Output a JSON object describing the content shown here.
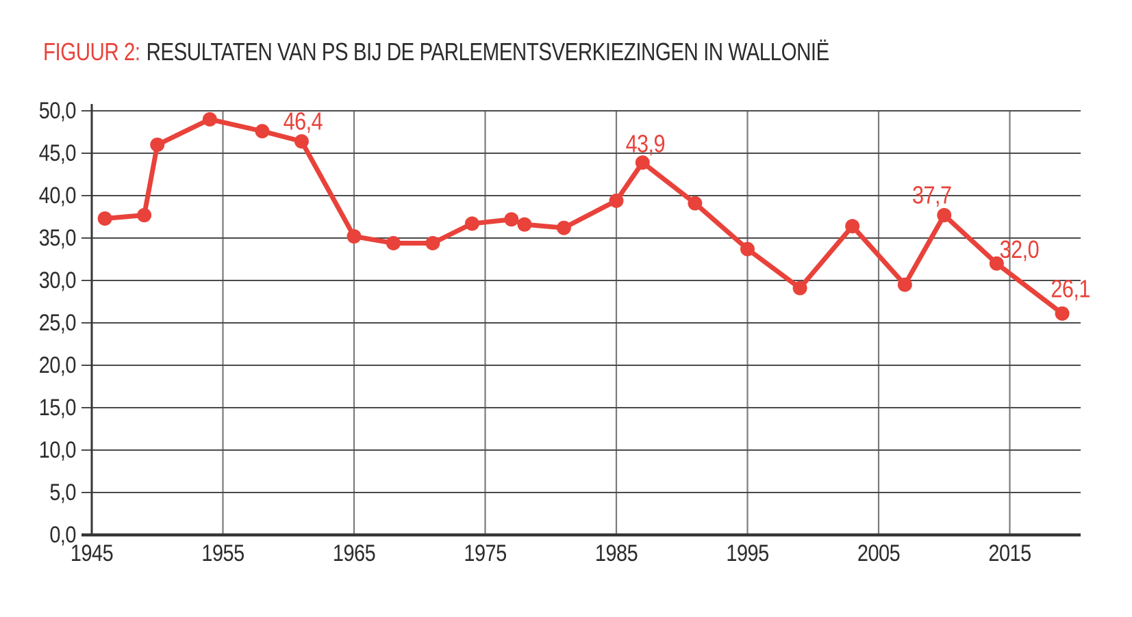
{
  "title": {
    "figure_label": "FIGUUR 2:",
    "text": "RESULTATEN VAN PS BIJ DE PARLEMENTSVERKIEZINGEN IN WALLONIË"
  },
  "colors": {
    "accent_red": "#e8423a",
    "grid_horizontal": "#4a4a4a",
    "grid_vertical": "#7b7b7b",
    "axis": "#363636",
    "text": "#2b2b2b"
  },
  "chart_data": {
    "type": "line",
    "title": "FIGUUR 2: RESULTATEN VAN PS BIJ DE PARLEMENTSVERKIEZINGEN IN WALLONIË",
    "series": [
      {
        "name": "PS",
        "points": [
          {
            "year": 1946,
            "value": 37.3
          },
          {
            "year": 1949,
            "value": 37.7
          },
          {
            "year": 1950,
            "value": 46.0
          },
          {
            "year": 1954,
            "value": 49.0
          },
          {
            "year": 1958,
            "value": 47.6
          },
          {
            "year": 1961,
            "value": 46.4
          },
          {
            "year": 1965,
            "value": 35.2
          },
          {
            "year": 1968,
            "value": 34.4
          },
          {
            "year": 1971,
            "value": 34.4
          },
          {
            "year": 1974,
            "value": 36.7
          },
          {
            "year": 1977,
            "value": 37.2
          },
          {
            "year": 1978,
            "value": 36.6
          },
          {
            "year": 1981,
            "value": 36.2
          },
          {
            "year": 1985,
            "value": 39.4
          },
          {
            "year": 1987,
            "value": 43.9
          },
          {
            "year": 1991,
            "value": 39.1
          },
          {
            "year": 1995,
            "value": 33.7
          },
          {
            "year": 1999,
            "value": 29.1
          },
          {
            "year": 2003,
            "value": 36.4
          },
          {
            "year": 2007,
            "value": 29.5
          },
          {
            "year": 2010,
            "value": 37.7
          },
          {
            "year": 2014,
            "value": 32.0
          },
          {
            "year": 2019,
            "value": 26.1
          }
        ]
      }
    ],
    "labeled_points": [
      {
        "year": 1961,
        "label": "46,4"
      },
      {
        "year": 1987,
        "label": "43,9"
      },
      {
        "year": 2010,
        "label": "37,7"
      },
      {
        "year": 2014,
        "label": "32,0"
      },
      {
        "year": 2019,
        "label": "26,1"
      }
    ],
    "x_ticks": [
      {
        "value": 1945,
        "label": "1945"
      },
      {
        "value": 1955,
        "label": "1955"
      },
      {
        "value": 1965,
        "label": "1965"
      },
      {
        "value": 1975,
        "label": "1975"
      },
      {
        "value": 1985,
        "label": "1985"
      },
      {
        "value": 1995,
        "label": "1995"
      },
      {
        "value": 2005,
        "label": "2005"
      },
      {
        "value": 2015,
        "label": "2015"
      }
    ],
    "y_ticks": [
      {
        "value": 0,
        "label": "0,0"
      },
      {
        "value": 5,
        "label": "5,0"
      },
      {
        "value": 10,
        "label": "10,0"
      },
      {
        "value": 15,
        "label": "15,0"
      },
      {
        "value": 20,
        "label": "20,0"
      },
      {
        "value": 25,
        "label": "25,0"
      },
      {
        "value": 30,
        "label": "30,0"
      },
      {
        "value": 35,
        "label": "35,0"
      },
      {
        "value": 40,
        "label": "40,0"
      },
      {
        "value": 45,
        "label": "45,0"
      },
      {
        "value": 50,
        "label": "50,0"
      }
    ],
    "xlim": [
      1945,
      2020.6
    ],
    "ylim": [
      0,
      50
    ],
    "grid": true,
    "legend": "none",
    "decimal_separator": ","
  }
}
